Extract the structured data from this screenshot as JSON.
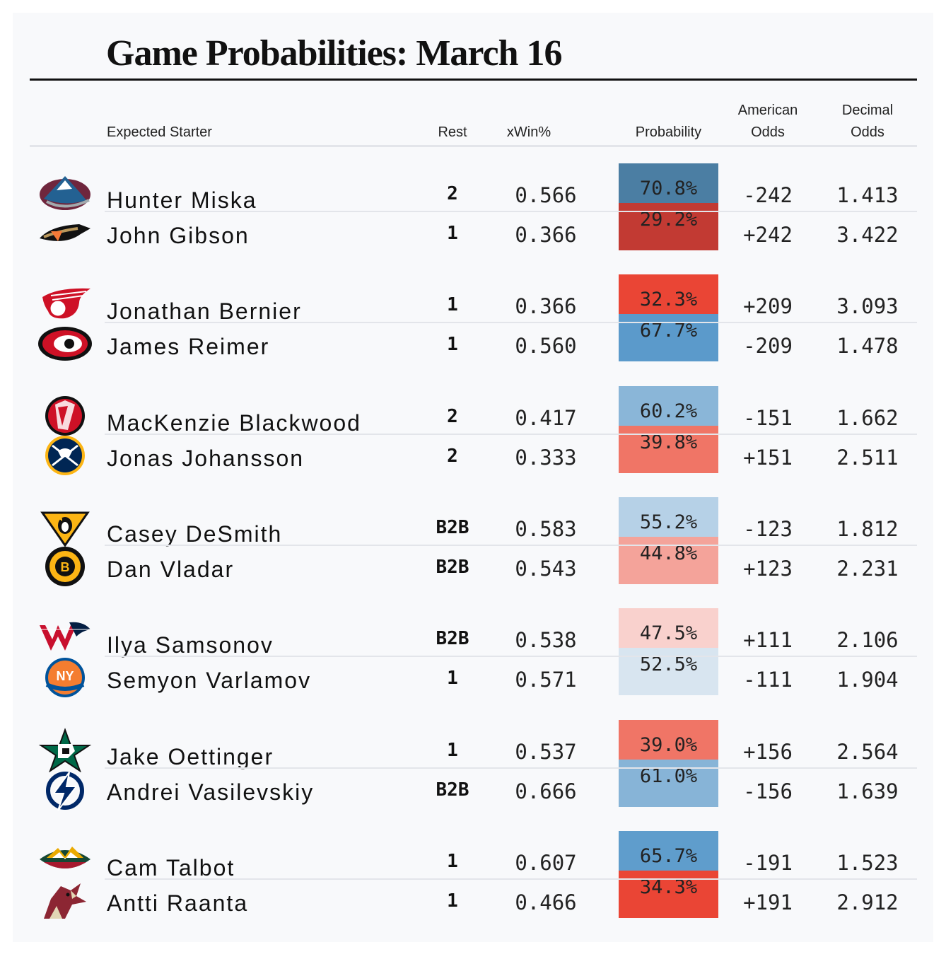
{
  "chart_data": {
    "type": "table",
    "title": "Game Probabilities: March 16",
    "columns": [
      "Expected Starter",
      "Rest",
      "xWin%",
      "Probability",
      "American Odds",
      "Decimal Odds"
    ],
    "games": [
      {
        "teams": [
          {
            "team": "Colorado Avalanche",
            "logo": "avalanche-logo",
            "starter": "Hunter Miska",
            "rest": "2",
            "xwin": "0.566",
            "prob": "70.8%",
            "prob_value": 70.8,
            "american": "-242",
            "decimal": "1.413",
            "color": "#4b7ea3"
          },
          {
            "team": "Anaheim Ducks",
            "logo": "ducks-logo",
            "starter": "John Gibson",
            "rest": "1",
            "xwin": "0.366",
            "prob": "29.2%",
            "prob_value": 29.2,
            "american": "+242",
            "decimal": "3.422",
            "color": "#c23a33"
          }
        ]
      },
      {
        "teams": [
          {
            "team": "Detroit Red Wings",
            "logo": "red-wings-logo",
            "starter": "Jonathan Bernier",
            "rest": "1",
            "xwin": "0.366",
            "prob": "32.3%",
            "prob_value": 32.3,
            "american": "+209",
            "decimal": "3.093",
            "color": "#ea4535"
          },
          {
            "team": "Carolina Hurricanes",
            "logo": "hurricanes-logo",
            "starter": "James Reimer",
            "rest": "1",
            "xwin": "0.560",
            "prob": "67.7%",
            "prob_value": 67.7,
            "american": "-209",
            "decimal": "1.478",
            "color": "#5b9acb"
          }
        ]
      },
      {
        "teams": [
          {
            "team": "New Jersey Devils",
            "logo": "devils-logo",
            "starter": "MacKenzie Blackwood",
            "rest": "2",
            "xwin": "0.417",
            "prob": "60.2%",
            "prob_value": 60.2,
            "american": "-151",
            "decimal": "1.662",
            "color": "#8ab6d8"
          },
          {
            "team": "Buffalo Sabres",
            "logo": "sabres-logo",
            "starter": "Jonas Johansson",
            "rest": "2",
            "xwin": "0.333",
            "prob": "39.8%",
            "prob_value": 39.8,
            "american": "+151",
            "decimal": "2.511",
            "color": "#f07566"
          }
        ]
      },
      {
        "teams": [
          {
            "team": "Pittsburgh Penguins",
            "logo": "penguins-logo",
            "starter": "Casey DeSmith",
            "rest": "B2B",
            "xwin": "0.583",
            "prob": "55.2%",
            "prob_value": 55.2,
            "american": "-123",
            "decimal": "1.812",
            "color": "#b6d1e7"
          },
          {
            "team": "Boston Bruins",
            "logo": "bruins-logo",
            "starter": "Dan Vladar",
            "rest": "B2B",
            "xwin": "0.543",
            "prob": "44.8%",
            "prob_value": 44.8,
            "american": "+123",
            "decimal": "2.231",
            "color": "#f4a39a"
          }
        ]
      },
      {
        "teams": [
          {
            "team": "Washington Capitals",
            "logo": "capitals-logo",
            "starter": "Ilya Samsonov",
            "rest": "B2B",
            "xwin": "0.538",
            "prob": "47.5%",
            "prob_value": 47.5,
            "american": "+111",
            "decimal": "2.106",
            "color": "#f9d1cd"
          },
          {
            "team": "New York Islanders",
            "logo": "islanders-logo",
            "starter": "Semyon Varlamov",
            "rest": "1",
            "xwin": "0.571",
            "prob": "52.5%",
            "prob_value": 52.5,
            "american": "-111",
            "decimal": "1.904",
            "color": "#d8e5f0"
          }
        ]
      },
      {
        "teams": [
          {
            "team": "Dallas Stars",
            "logo": "stars-logo",
            "starter": "Jake Oettinger",
            "rest": "1",
            "xwin": "0.537",
            "prob": "39.0%",
            "prob_value": 39.0,
            "american": "+156",
            "decimal": "2.564",
            "color": "#f07566"
          },
          {
            "team": "Tampa Bay Lightning",
            "logo": "lightning-logo",
            "starter": "Andrei Vasilevskiy",
            "rest": "B2B",
            "xwin": "0.666",
            "prob": "61.0%",
            "prob_value": 61.0,
            "american": "-156",
            "decimal": "1.639",
            "color": "#87b4d7"
          }
        ]
      },
      {
        "teams": [
          {
            "team": "Minnesota Wild",
            "logo": "wild-logo",
            "starter": "Cam Talbot",
            "rest": "1",
            "xwin": "0.607",
            "prob": "65.7%",
            "prob_value": 65.7,
            "american": "-191",
            "decimal": "1.523",
            "color": "#5f9dcc"
          },
          {
            "team": "Arizona Coyotes",
            "logo": "coyotes-logo",
            "starter": "Antti Raanta",
            "rest": "1",
            "xwin": "0.466",
            "prob": "34.3%",
            "prob_value": 34.3,
            "american": "+191",
            "decimal": "2.912",
            "color": "#ea4535"
          }
        ]
      }
    ]
  },
  "header": {
    "starter": "Expected Starter",
    "rest": "Rest",
    "xwin": "xWin%",
    "prob": "Probability",
    "american_1": "American",
    "american_2": "Odds",
    "decimal_1": "Decimal",
    "decimal_2": "Odds"
  }
}
